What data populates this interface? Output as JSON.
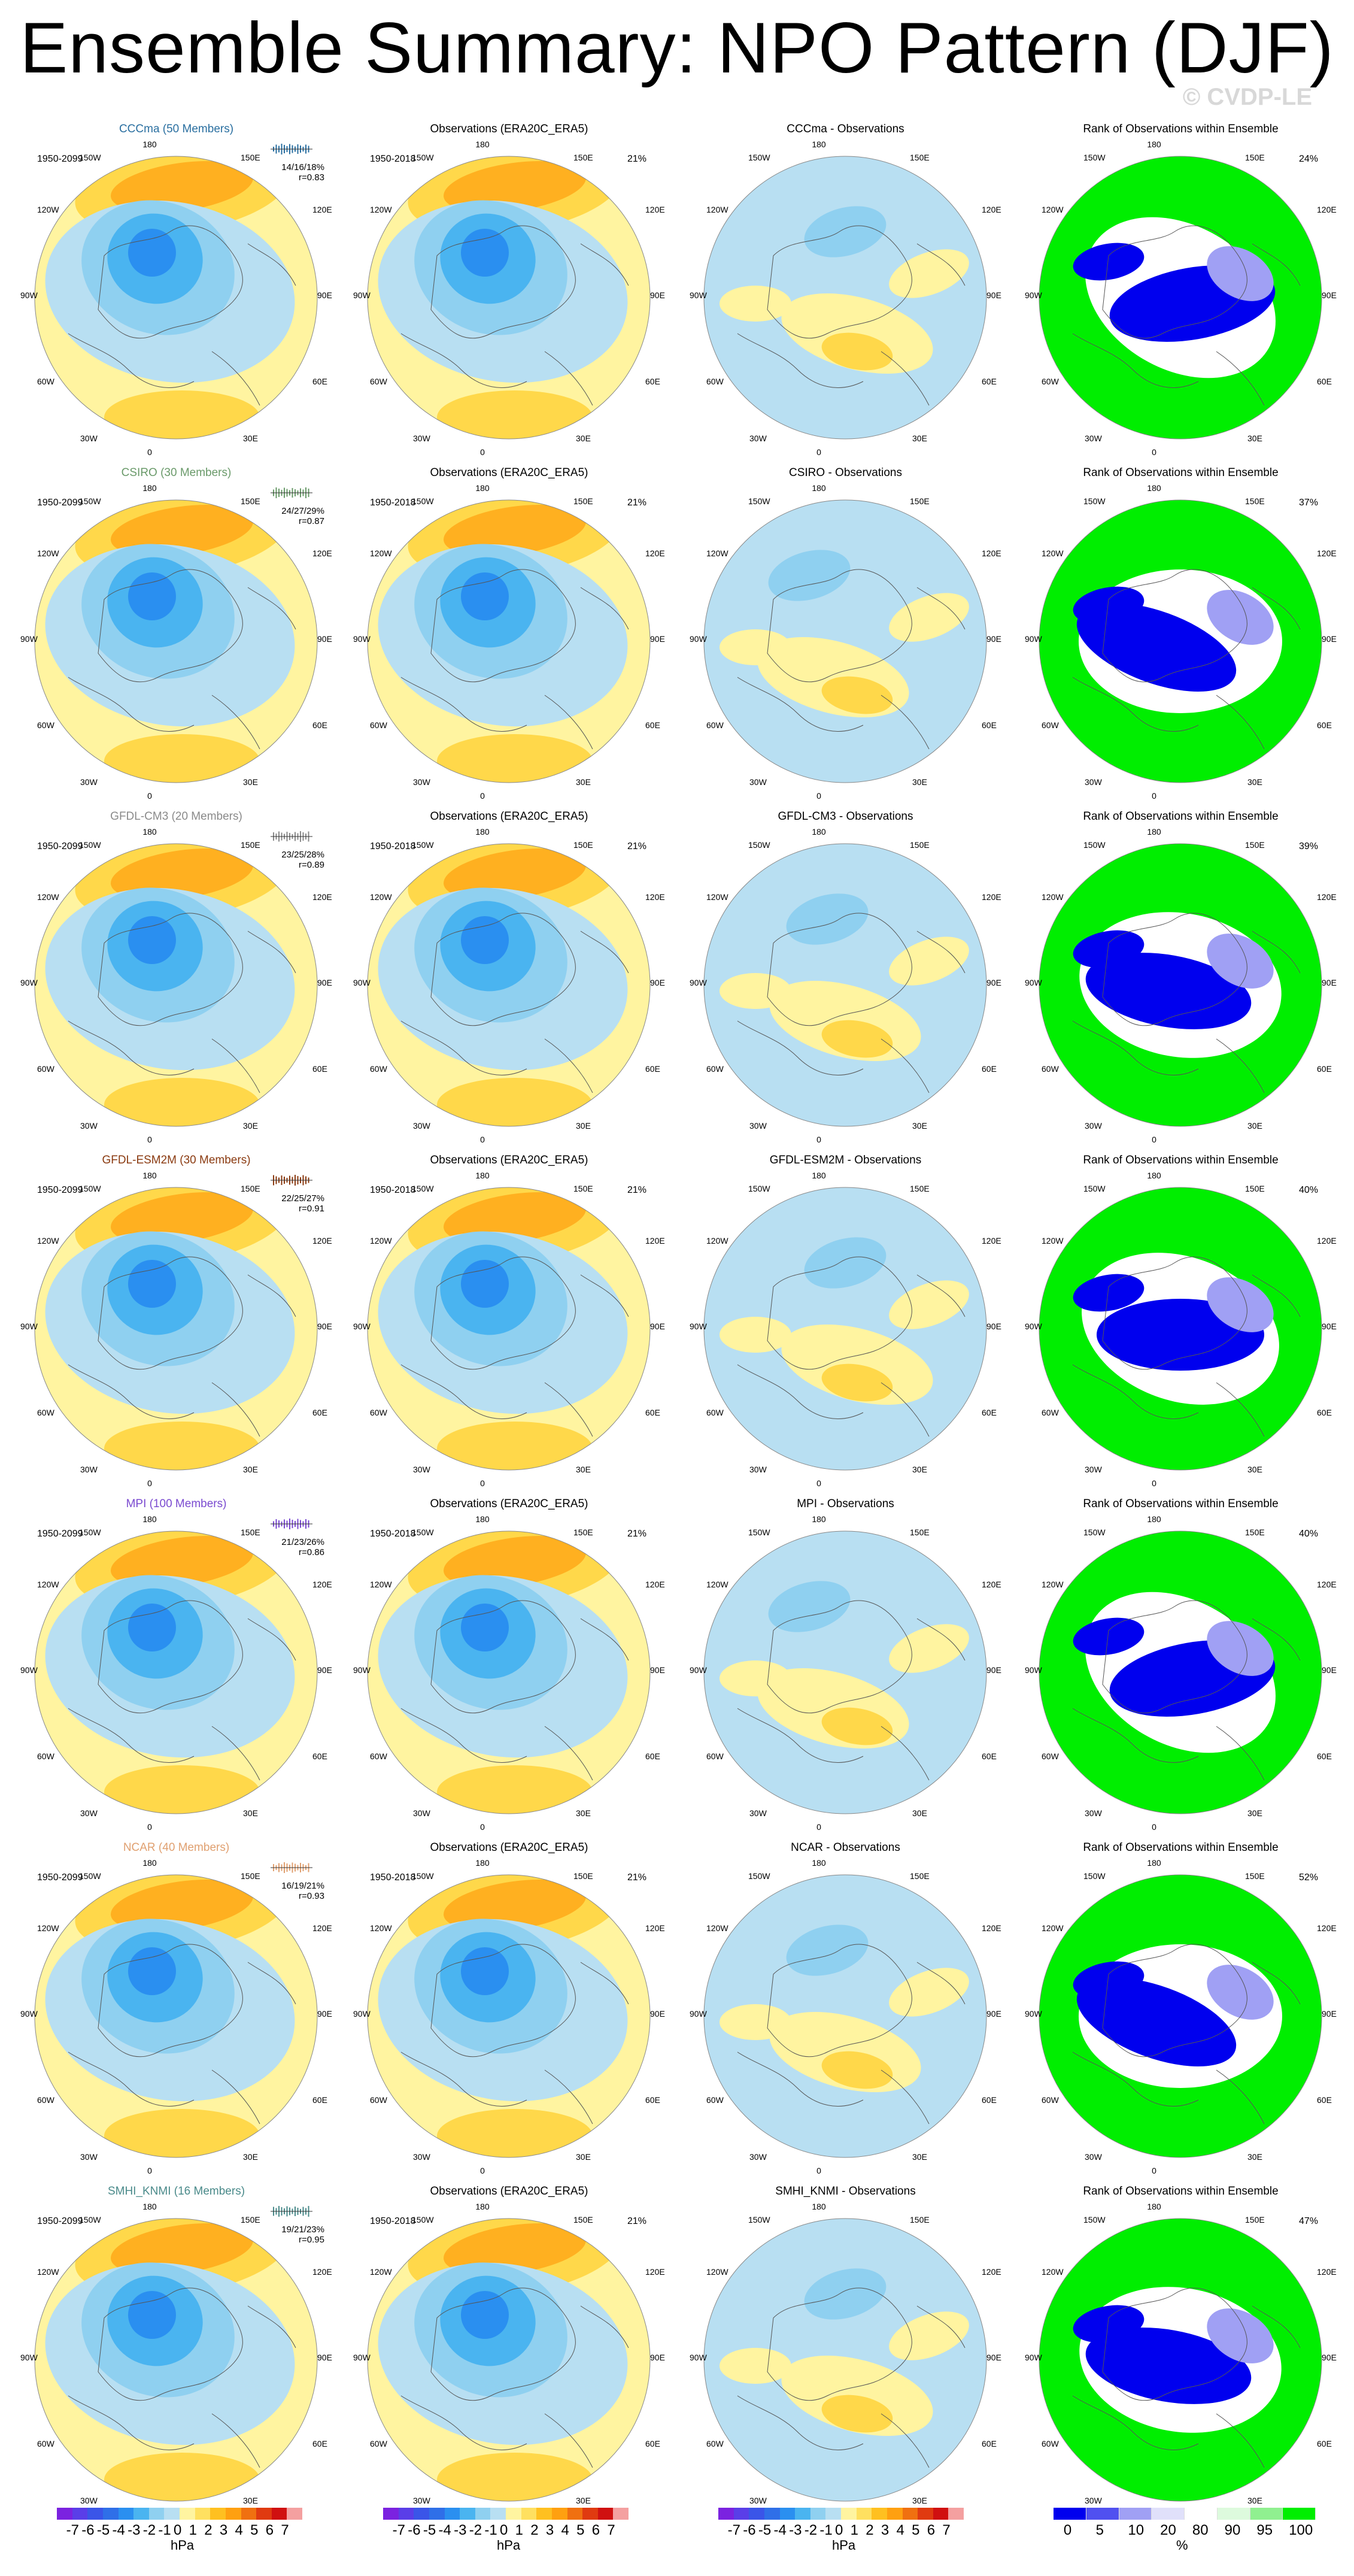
{
  "title": "Ensemble Summary: NPO Pattern (DJF)",
  "watermark": "© CVDP-LE",
  "obs_title": "Observations (ERA20C_ERA5)",
  "obs_period": "1950-2018",
  "obs_pct": "21%",
  "rank_title": "Rank of Observations within Ensemble",
  "longitude_labels": {
    "top": "180",
    "bottom": "0",
    "tl": "150W",
    "tr": "150E",
    "ul": "120W",
    "ur": "120E",
    "ml": "90W",
    "mr": "90E",
    "ll": "60W",
    "lr": "60E",
    "bl": "30W",
    "br": "30E"
  },
  "rows": [
    {
      "model_title": "CCCma (50 Members)",
      "title_color": "#2a6fa0",
      "period": "1950-2099",
      "stats": "14/16/18%",
      "corr": "r=0.83",
      "diff_title": "CCCma - Observations",
      "rank_pct": "24%"
    },
    {
      "model_title": "CSIRO (30 Members)",
      "title_color": "#6a9a6a",
      "period": "1950-2099",
      "stats": "24/27/29%",
      "corr": "r=0.87",
      "diff_title": "CSIRO - Observations",
      "rank_pct": "37%"
    },
    {
      "model_title": "GFDL-CM3 (20 Members)",
      "title_color": "#8a8a8a",
      "period": "1950-2099",
      "stats": "23/25/28%",
      "corr": "r=0.89",
      "diff_title": "GFDL-CM3 - Observations",
      "rank_pct": "39%"
    },
    {
      "model_title": "GFDL-ESM2M (30 Members)",
      "title_color": "#8a3a10",
      "period": "1950-2099",
      "stats": "22/25/27%",
      "corr": "r=0.91",
      "diff_title": "GFDL-ESM2M - Observations",
      "rank_pct": "40%"
    },
    {
      "model_title": "MPI (100 Members)",
      "title_color": "#7a4ad0",
      "period": "1950-2099",
      "stats": "21/23/26%",
      "corr": "r=0.86",
      "diff_title": "MPI - Observations",
      "rank_pct": "40%"
    },
    {
      "model_title": "NCAR (40 Members)",
      "title_color": "#e0a070",
      "period": "1950-2099",
      "stats": "16/19/21%",
      "corr": "r=0.93",
      "diff_title": "NCAR - Observations",
      "rank_pct": "52%"
    },
    {
      "model_title": "SMHI_KNMI (16 Members)",
      "title_color": "#4a8a8a",
      "period": "1950-2099",
      "stats": "19/21/23%",
      "corr": "r=0.95",
      "diff_title": "SMHI_KNMI - Observations",
      "rank_pct": "47%"
    }
  ],
  "colorbar_hpa": {
    "labels": [
      "-7",
      "-6",
      "-5",
      "-4",
      "-3",
      "-2",
      "-1",
      "0",
      "1",
      "2",
      "3",
      "4",
      "5",
      "6",
      "7"
    ],
    "colors": [
      "#7b22e0",
      "#5a3ee8",
      "#3a55e8",
      "#2f6fe8",
      "#2a8ff0",
      "#4ab4f0",
      "#8fd0f0",
      "#b8dff2",
      "#fff4a0",
      "#ffe060",
      "#ffc020",
      "#ffa010",
      "#f07010",
      "#e03a10",
      "#d01010",
      "#f4a0a0"
    ],
    "unit": "hPa"
  },
  "colorbar_pct": {
    "labels": [
      "0",
      "5",
      "10",
      "20",
      "80",
      "90",
      "95",
      "100"
    ],
    "colors": [
      "#0000ee",
      "#5050f0",
      "#a0a0f4",
      "#e0e0fa",
      "#ffffff",
      "#ddfadd",
      "#90f090",
      "#00ee00"
    ],
    "unit": "%"
  },
  "colors": {
    "neg_light": "#b8dff2",
    "neg_mid": "#8fd0f0",
    "neg_deep": "#4ab4f0",
    "neg_core": "#2a8ff0",
    "pos_light": "#fff4a0",
    "pos_mid": "#ffd84a",
    "pos_deep": "#ffb020",
    "rank_low": "#0000ee",
    "rank_high": "#00ee00"
  }
}
